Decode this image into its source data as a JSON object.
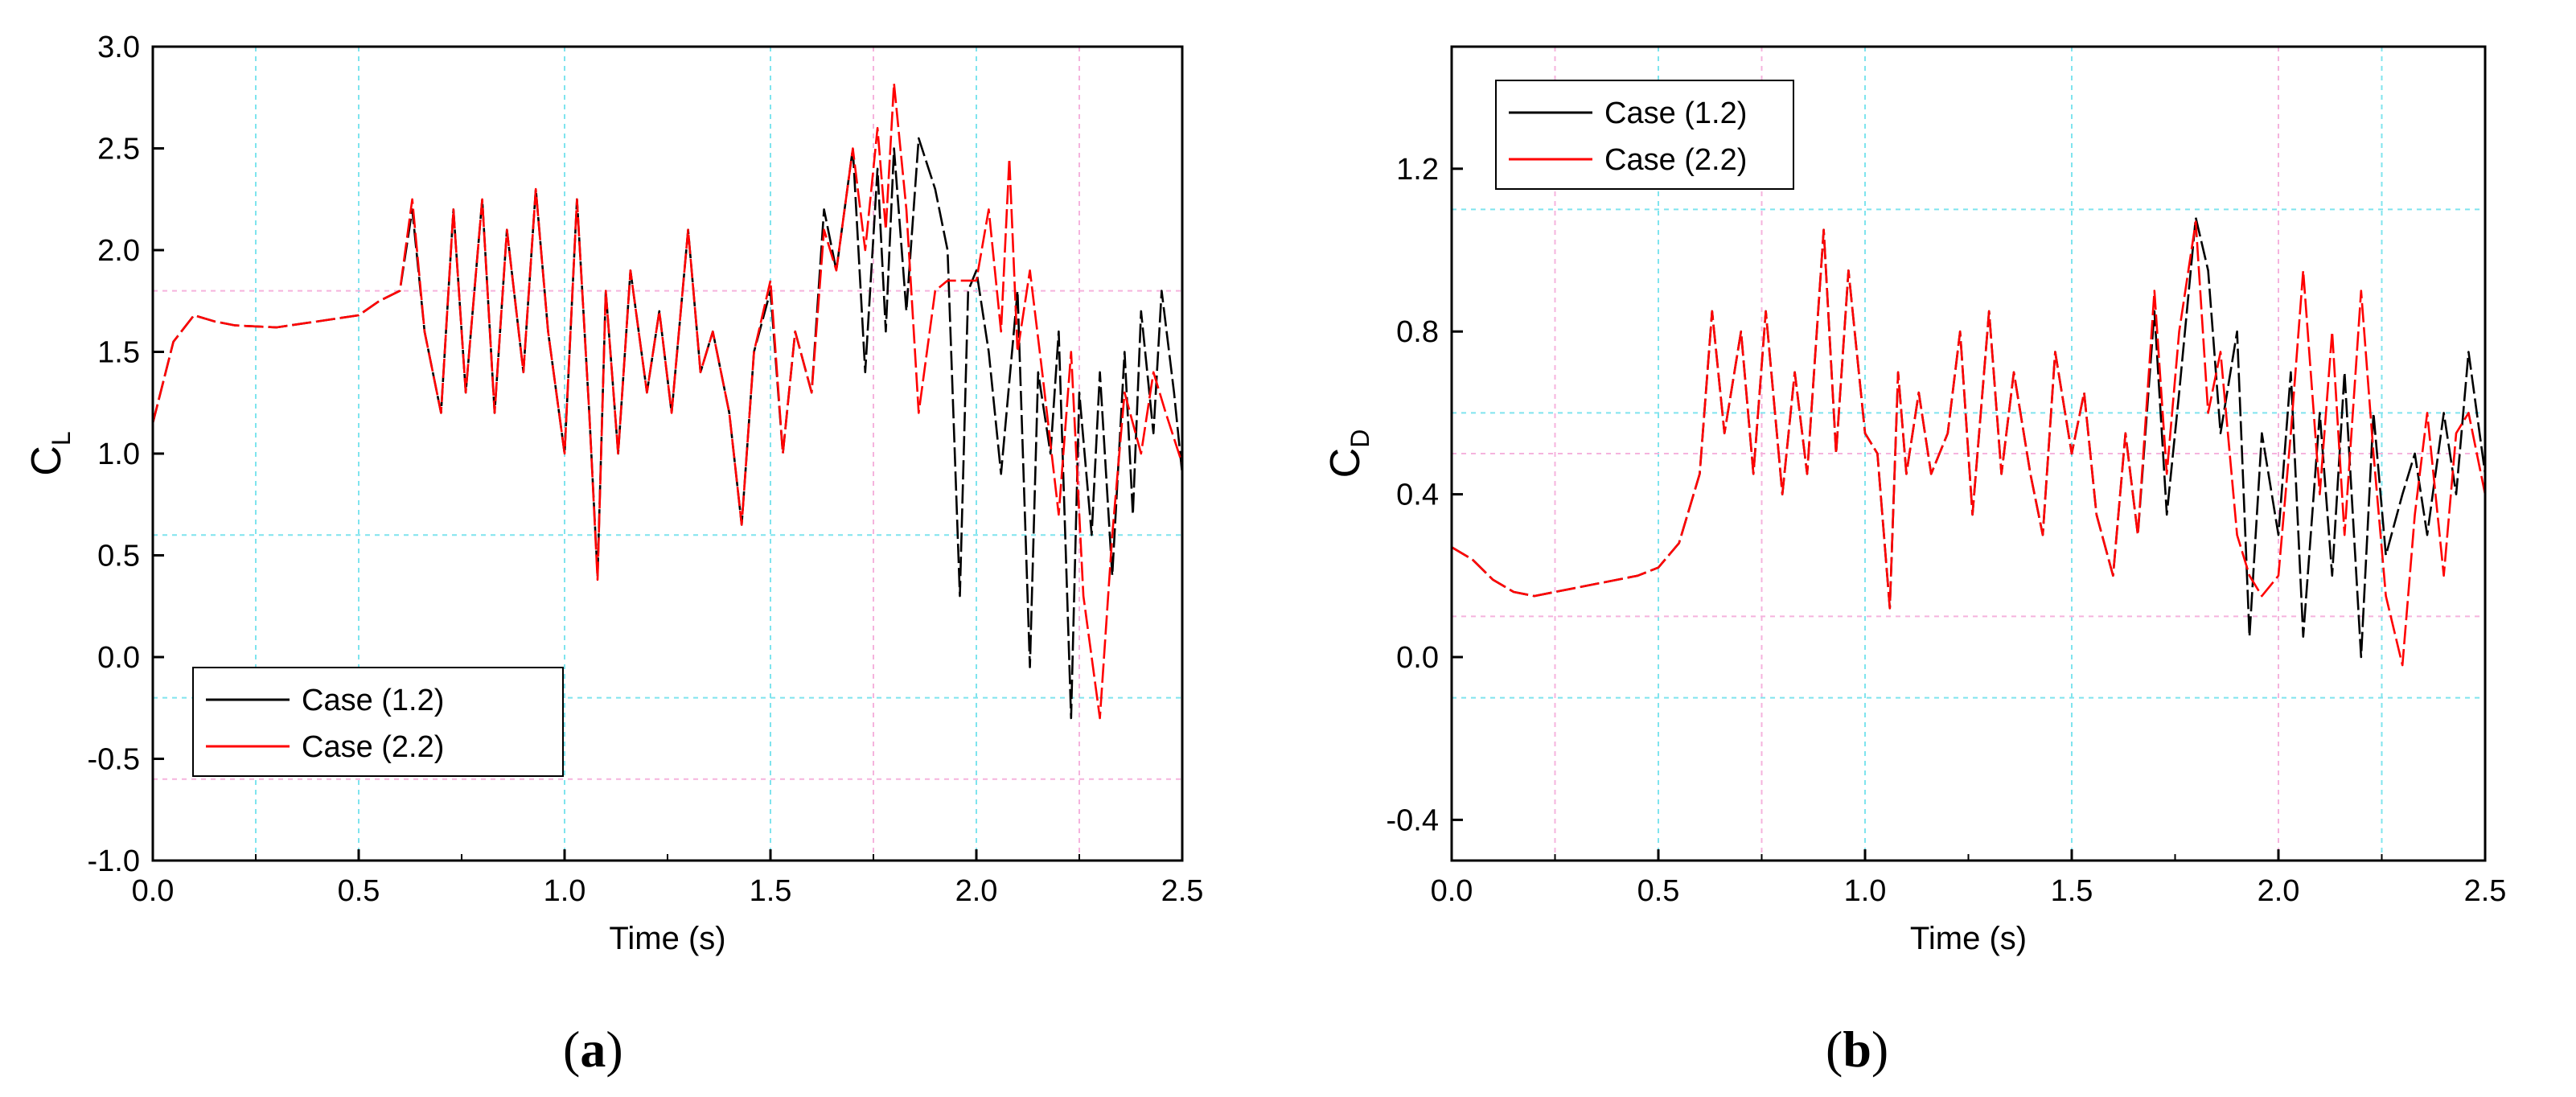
{
  "chart_data": [
    {
      "panel": "(a)",
      "panel_letter": "a",
      "type": "line",
      "xlabel": "Time (s)",
      "ylabel": "C",
      "ylabel_sub": "L",
      "xlim": [
        0,
        2.5
      ],
      "ylim": [
        -1.0,
        3.0
      ],
      "xticks": [
        "0.0",
        "0.5",
        "1.0",
        "1.5",
        "2.0",
        "2.5"
      ],
      "yticks": [
        "-1.0",
        "-0.5",
        "0.0",
        "0.5",
        "1.0",
        "1.5",
        "2.0",
        "2.5",
        "3.0"
      ],
      "ytick_values": [
        -1.0,
        -0.5,
        0.0,
        0.5,
        1.0,
        1.5,
        2.0,
        2.5,
        3.0
      ],
      "grid_dashed_cyan_x": [
        0.25,
        0.5,
        1.0,
        1.5,
        2.0
      ],
      "grid_dashed_pink_x": [
        1.75,
        2.25
      ],
      "grid_dashed_cyan_y": [
        0.6,
        -0.2
      ],
      "grid_dashed_pink_y": [
        1.8,
        -0.6
      ],
      "legend_position": "bottom-left",
      "series": [
        {
          "name": "Case (1.2)",
          "color": "#000000",
          "x": [
            0.0,
            0.05,
            0.1,
            0.15,
            0.2,
            0.3,
            0.4,
            0.5,
            0.55,
            0.6,
            0.63,
            0.66,
            0.7,
            0.73,
            0.76,
            0.8,
            0.83,
            0.86,
            0.9,
            0.93,
            0.96,
            1.0,
            1.03,
            1.06,
            1.08,
            1.1,
            1.13,
            1.16,
            1.2,
            1.23,
            1.26,
            1.3,
            1.33,
            1.36,
            1.4,
            1.43,
            1.46,
            1.5,
            1.53,
            1.56,
            1.6,
            1.63,
            1.66,
            1.7,
            1.73,
            1.76,
            1.78,
            1.8,
            1.83,
            1.86,
            1.9,
            1.93,
            1.96,
            1.98,
            2.0,
            2.03,
            2.06,
            2.1,
            2.13,
            2.15,
            2.18,
            2.2,
            2.23,
            2.25,
            2.28,
            2.3,
            2.33,
            2.36,
            2.38,
            2.4,
            2.43,
            2.45,
            2.48,
            2.5
          ],
          "y": [
            1.15,
            1.55,
            1.68,
            1.65,
            1.63,
            1.62,
            1.65,
            1.68,
            1.75,
            1.8,
            2.2,
            1.6,
            1.2,
            2.2,
            1.3,
            2.25,
            1.2,
            2.1,
            1.4,
            2.3,
            1.6,
            1.0,
            2.25,
            1.2,
            0.4,
            1.8,
            1.0,
            1.9,
            1.3,
            1.7,
            1.2,
            2.1,
            1.4,
            1.6,
            1.2,
            0.65,
            1.5,
            1.8,
            1.0,
            1.6,
            1.3,
            2.2,
            1.9,
            2.5,
            1.4,
            2.4,
            1.6,
            2.5,
            1.7,
            2.55,
            2.3,
            2.0,
            0.3,
            1.8,
            1.9,
            1.5,
            0.9,
            1.8,
            -0.05,
            1.4,
            1.0,
            1.6,
            -0.3,
            1.3,
            0.6,
            1.4,
            0.4,
            1.5,
            0.7,
            1.7,
            1.1,
            1.8,
            1.3,
            0.9
          ]
        },
        {
          "name": "Case (2.2)",
          "color": "#ff0000",
          "x": [
            0.0,
            0.05,
            0.1,
            0.15,
            0.2,
            0.3,
            0.4,
            0.5,
            0.55,
            0.6,
            0.63,
            0.66,
            0.7,
            0.73,
            0.76,
            0.8,
            0.83,
            0.86,
            0.9,
            0.93,
            0.96,
            1.0,
            1.03,
            1.06,
            1.08,
            1.1,
            1.13,
            1.16,
            1.2,
            1.23,
            1.26,
            1.3,
            1.33,
            1.36,
            1.4,
            1.43,
            1.46,
            1.5,
            1.53,
            1.56,
            1.6,
            1.63,
            1.66,
            1.7,
            1.73,
            1.76,
            1.78,
            1.8,
            1.83,
            1.86,
            1.9,
            1.93,
            1.96,
            2.0,
            2.03,
            2.06,
            2.08,
            2.1,
            2.13,
            2.16,
            2.2,
            2.23,
            2.26,
            2.3,
            2.33,
            2.36,
            2.4,
            2.43,
            2.46,
            2.5
          ],
          "y": [
            1.15,
            1.55,
            1.68,
            1.65,
            1.63,
            1.62,
            1.65,
            1.68,
            1.75,
            1.8,
            2.25,
            1.6,
            1.2,
            2.2,
            1.3,
            2.25,
            1.2,
            2.1,
            1.4,
            2.3,
            1.6,
            1.0,
            2.25,
            1.2,
            0.38,
            1.8,
            1.0,
            1.9,
            1.3,
            1.7,
            1.2,
            2.1,
            1.4,
            1.6,
            1.2,
            0.65,
            1.5,
            1.85,
            1.0,
            1.6,
            1.3,
            2.1,
            1.9,
            2.5,
            2.0,
            2.6,
            2.1,
            2.82,
            2.2,
            1.2,
            1.8,
            1.85,
            1.85,
            1.85,
            2.2,
            1.6,
            2.45,
            1.5,
            1.9,
            1.4,
            0.7,
            1.5,
            0.3,
            -0.3,
            0.6,
            1.3,
            1.0,
            1.4,
            1.2,
            0.95
          ]
        }
      ]
    },
    {
      "panel": "(b)",
      "panel_letter": "b",
      "type": "line",
      "xlabel": "Time (s)",
      "ylabel": "C",
      "ylabel_sub": "D",
      "xlim": [
        0,
        2.5
      ],
      "ylim": [
        -0.5,
        1.5
      ],
      "xticks": [
        "0.0",
        "0.5",
        "1.0",
        "1.5",
        "2.0",
        "2.5"
      ],
      "yticks": [
        "-0.4",
        "0.0",
        "0.4",
        "0.8",
        "1.2"
      ],
      "ytick_values": [
        -0.4,
        0.0,
        0.4,
        0.8,
        1.2
      ],
      "grid_dashed_cyan_x": [
        0.5,
        1.0,
        1.5,
        2.25
      ],
      "grid_dashed_pink_x": [
        0.25,
        0.75,
        2.0
      ],
      "grid_dashed_cyan_y": [
        1.1,
        0.6,
        -0.1
      ],
      "grid_dashed_pink_y": [
        0.5,
        0.1
      ],
      "legend_position": "top-left",
      "series": [
        {
          "name": "Case (1.2)",
          "color": "#000000",
          "x": [
            0.0,
            0.05,
            0.1,
            0.15,
            0.2,
            0.25,
            0.3,
            0.35,
            0.4,
            0.45,
            0.5,
            0.55,
            0.6,
            0.63,
            0.66,
            0.7,
            0.73,
            0.76,
            0.8,
            0.83,
            0.86,
            0.9,
            0.93,
            0.96,
            1.0,
            1.03,
            1.06,
            1.08,
            1.1,
            1.13,
            1.16,
            1.2,
            1.23,
            1.26,
            1.3,
            1.33,
            1.36,
            1.4,
            1.43,
            1.46,
            1.5,
            1.53,
            1.56,
            1.6,
            1.63,
            1.66,
            1.7,
            1.73,
            1.76,
            1.8,
            1.83,
            1.86,
            1.9,
            1.93,
            1.96,
            2.0,
            2.03,
            2.06,
            2.1,
            2.13,
            2.16,
            2.2,
            2.23,
            2.26,
            2.3,
            2.33,
            2.36,
            2.4,
            2.43,
            2.46,
            2.5
          ],
          "y": [
            0.27,
            0.24,
            0.19,
            0.16,
            0.15,
            0.16,
            0.17,
            0.18,
            0.19,
            0.2,
            0.22,
            0.28,
            0.45,
            0.85,
            0.55,
            0.8,
            0.45,
            0.85,
            0.4,
            0.7,
            0.45,
            1.05,
            0.5,
            0.95,
            0.55,
            0.5,
            0.12,
            0.7,
            0.45,
            0.65,
            0.45,
            0.55,
            0.8,
            0.35,
            0.85,
            0.45,
            0.7,
            0.45,
            0.3,
            0.75,
            0.5,
            0.65,
            0.35,
            0.2,
            0.55,
            0.3,
            0.85,
            0.35,
            0.65,
            1.08,
            0.95,
            0.55,
            0.8,
            0.05,
            0.55,
            0.3,
            0.7,
            0.05,
            0.6,
            0.2,
            0.7,
            0.0,
            0.6,
            0.25,
            0.4,
            0.5,
            0.3,
            0.6,
            0.4,
            0.75,
            0.45
          ]
        },
        {
          "name": "Case (2.2)",
          "color": "#ff0000",
          "x": [
            0.0,
            0.05,
            0.1,
            0.15,
            0.2,
            0.25,
            0.3,
            0.35,
            0.4,
            0.45,
            0.5,
            0.55,
            0.6,
            0.63,
            0.66,
            0.7,
            0.73,
            0.76,
            0.8,
            0.83,
            0.86,
            0.9,
            0.93,
            0.96,
            1.0,
            1.03,
            1.06,
            1.08,
            1.1,
            1.13,
            1.16,
            1.2,
            1.23,
            1.26,
            1.3,
            1.33,
            1.36,
            1.4,
            1.43,
            1.46,
            1.5,
            1.53,
            1.56,
            1.6,
            1.63,
            1.66,
            1.7,
            1.73,
            1.76,
            1.8,
            1.83,
            1.86,
            1.9,
            1.93,
            1.96,
            2.0,
            2.03,
            2.06,
            2.1,
            2.13,
            2.16,
            2.2,
            2.23,
            2.26,
            2.3,
            2.33,
            2.36,
            2.4,
            2.43,
            2.46,
            2.5
          ],
          "y": [
            0.27,
            0.24,
            0.19,
            0.16,
            0.15,
            0.16,
            0.17,
            0.18,
            0.19,
            0.2,
            0.22,
            0.28,
            0.45,
            0.85,
            0.55,
            0.8,
            0.45,
            0.85,
            0.4,
            0.7,
            0.45,
            1.05,
            0.5,
            0.95,
            0.55,
            0.5,
            0.12,
            0.7,
            0.45,
            0.65,
            0.45,
            0.55,
            0.8,
            0.35,
            0.85,
            0.45,
            0.7,
            0.45,
            0.3,
            0.75,
            0.5,
            0.65,
            0.35,
            0.2,
            0.55,
            0.3,
            0.9,
            0.45,
            0.8,
            1.07,
            0.6,
            0.75,
            0.3,
            0.2,
            0.15,
            0.2,
            0.55,
            0.95,
            0.4,
            0.8,
            0.3,
            0.9,
            0.5,
            0.15,
            -0.02,
            0.35,
            0.6,
            0.2,
            0.55,
            0.6,
            0.4
          ]
        }
      ]
    }
  ]
}
